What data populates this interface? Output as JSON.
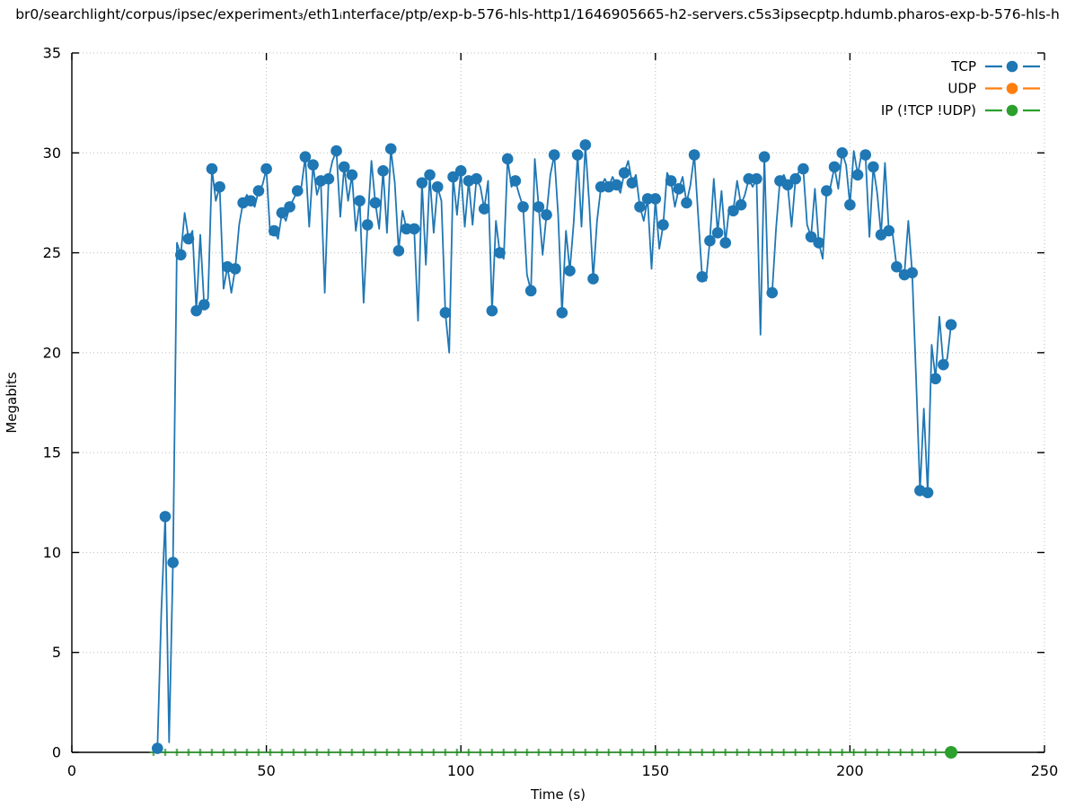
{
  "title": "br0/searchlight/corpus/ipsec/experiment₃/eth1ᵢnterface/ptp/exp-b-576-hls-http1/1646905665-h2-servers.c5s3ipsecptp.hdumb.pharos-exp-b-576-hls-h",
  "colors": {
    "tcp": "#1f77b4",
    "udp": "#ff7f0e",
    "ip": "#2ca02c",
    "axis": "#000000",
    "grid": "#bbbbbb"
  },
  "chart_data": {
    "type": "line",
    "style": "linespoints",
    "xlabel": "Time (s)",
    "ylabel": "Megabits",
    "xlim": [
      0,
      250
    ],
    "ylim": [
      0,
      35
    ],
    "xticks": [
      0,
      50,
      100,
      150,
      200,
      250
    ],
    "yticks": [
      0,
      5,
      10,
      15,
      20,
      25,
      30,
      35
    ],
    "grid": true,
    "legend_position": "top-right",
    "series": [
      {
        "name": "TCP",
        "color": "#1f77b4",
        "marker": "circle",
        "marker_every": 2,
        "points": [
          [
            22,
            0.2
          ],
          [
            23,
            7.0
          ],
          [
            24,
            11.8
          ],
          [
            25,
            0.5
          ],
          [
            26,
            9.5
          ],
          [
            27,
            25.5
          ],
          [
            28,
            24.9
          ],
          [
            29,
            27.0
          ],
          [
            30,
            25.7
          ],
          [
            31,
            26.1
          ],
          [
            32,
            22.1
          ],
          [
            33,
            25.9
          ],
          [
            34,
            22.4
          ],
          [
            35,
            22.7
          ],
          [
            36,
            29.2
          ],
          [
            37,
            27.6
          ],
          [
            38,
            28.3
          ],
          [
            39,
            23.2
          ],
          [
            40,
            24.3
          ],
          [
            41,
            23.0
          ],
          [
            42,
            24.2
          ],
          [
            43,
            26.4
          ],
          [
            44,
            27.5
          ],
          [
            45,
            27.9
          ],
          [
            46,
            27.6
          ],
          [
            47,
            27.3
          ],
          [
            48,
            28.1
          ],
          [
            49,
            28.4
          ],
          [
            50,
            29.2
          ],
          [
            51,
            25.9
          ],
          [
            52,
            26.1
          ],
          [
            53,
            25.7
          ],
          [
            54,
            27.0
          ],
          [
            55,
            26.6
          ],
          [
            56,
            27.3
          ],
          [
            57,
            27.7
          ],
          [
            58,
            28.1
          ],
          [
            59,
            28.3
          ],
          [
            60,
            29.8
          ],
          [
            61,
            26.3
          ],
          [
            62,
            29.4
          ],
          [
            63,
            27.9
          ],
          [
            64,
            28.6
          ],
          [
            65,
            23.0
          ],
          [
            66,
            28.7
          ],
          [
            67,
            29.6
          ],
          [
            68,
            30.1
          ],
          [
            69,
            26.8
          ],
          [
            70,
            29.3
          ],
          [
            71,
            27.6
          ],
          [
            72,
            28.9
          ],
          [
            73,
            26.1
          ],
          [
            74,
            27.6
          ],
          [
            75,
            22.5
          ],
          [
            76,
            26.4
          ],
          [
            77,
            29.6
          ],
          [
            78,
            27.5
          ],
          [
            79,
            26.2
          ],
          [
            80,
            29.1
          ],
          [
            81,
            26.0
          ],
          [
            82,
            30.2
          ],
          [
            83,
            28.5
          ],
          [
            84,
            25.1
          ],
          [
            85,
            27.1
          ],
          [
            86,
            26.2
          ],
          [
            87,
            26.3
          ],
          [
            88,
            26.2
          ],
          [
            89,
            21.6
          ],
          [
            90,
            28.5
          ],
          [
            91,
            24.4
          ],
          [
            92,
            28.9
          ],
          [
            93,
            26.0
          ],
          [
            94,
            28.3
          ],
          [
            95,
            27.6
          ],
          [
            96,
            22.0
          ],
          [
            97,
            20.0
          ],
          [
            98,
            28.8
          ],
          [
            99,
            26.9
          ],
          [
            100,
            29.1
          ],
          [
            101,
            26.3
          ],
          [
            102,
            28.6
          ],
          [
            103,
            26.4
          ],
          [
            104,
            28.7
          ],
          [
            105,
            28.3
          ],
          [
            106,
            27.2
          ],
          [
            107,
            28.6
          ],
          [
            108,
            22.1
          ],
          [
            109,
            26.6
          ],
          [
            110,
            25.0
          ],
          [
            111,
            24.7
          ],
          [
            112,
            29.7
          ],
          [
            113,
            28.3
          ],
          [
            114,
            28.6
          ],
          [
            115,
            27.9
          ],
          [
            116,
            27.3
          ],
          [
            117,
            23.9
          ],
          [
            118,
            23.1
          ],
          [
            119,
            29.7
          ],
          [
            120,
            27.3
          ],
          [
            121,
            24.9
          ],
          [
            122,
            26.9
          ],
          [
            123,
            28.9
          ],
          [
            124,
            29.9
          ],
          [
            125,
            26.9
          ],
          [
            126,
            22.0
          ],
          [
            127,
            26.1
          ],
          [
            128,
            24.1
          ],
          [
            129,
            26.5
          ],
          [
            130,
            29.9
          ],
          [
            131,
            26.3
          ],
          [
            132,
            30.4
          ],
          [
            133,
            27.4
          ],
          [
            134,
            23.7
          ],
          [
            135,
            26.6
          ],
          [
            136,
            28.3
          ],
          [
            137,
            28.7
          ],
          [
            138,
            28.3
          ],
          [
            139,
            28.8
          ],
          [
            140,
            28.4
          ],
          [
            141,
            28.0
          ],
          [
            142,
            29.0
          ],
          [
            143,
            29.6
          ],
          [
            144,
            28.5
          ],
          [
            145,
            28.9
          ],
          [
            146,
            27.3
          ],
          [
            147,
            26.6
          ],
          [
            148,
            27.7
          ],
          [
            149,
            24.2
          ],
          [
            150,
            27.7
          ],
          [
            151,
            25.2
          ],
          [
            152,
            26.4
          ],
          [
            153,
            29.0
          ],
          [
            154,
            28.6
          ],
          [
            155,
            27.3
          ],
          [
            156,
            28.2
          ],
          [
            157,
            28.8
          ],
          [
            158,
            27.5
          ],
          [
            159,
            28.4
          ],
          [
            160,
            29.9
          ],
          [
            161,
            26.8
          ],
          [
            162,
            23.8
          ],
          [
            163,
            23.6
          ],
          [
            164,
            25.6
          ],
          [
            165,
            28.7
          ],
          [
            166,
            26.0
          ],
          [
            167,
            28.1
          ],
          [
            168,
            25.5
          ],
          [
            169,
            27.3
          ],
          [
            170,
            27.1
          ],
          [
            171,
            28.6
          ],
          [
            172,
            27.4
          ],
          [
            173,
            27.9
          ],
          [
            174,
            28.7
          ],
          [
            175,
            28.3
          ],
          [
            176,
            28.7
          ],
          [
            177,
            20.9
          ],
          [
            178,
            29.8
          ],
          [
            179,
            23.1
          ],
          [
            180,
            23.0
          ],
          [
            181,
            26.2
          ],
          [
            182,
            28.6
          ],
          [
            183,
            28.9
          ],
          [
            184,
            28.4
          ],
          [
            185,
            26.3
          ],
          [
            186,
            28.7
          ],
          [
            187,
            29.1
          ],
          [
            188,
            29.2
          ],
          [
            189,
            26.4
          ],
          [
            190,
            25.8
          ],
          [
            191,
            28.2
          ],
          [
            192,
            25.5
          ],
          [
            193,
            24.7
          ],
          [
            194,
            28.1
          ],
          [
            195,
            28.3
          ],
          [
            196,
            29.3
          ],
          [
            197,
            28.2
          ],
          [
            198,
            30.0
          ],
          [
            199,
            29.4
          ],
          [
            200,
            27.4
          ],
          [
            201,
            30.1
          ],
          [
            202,
            28.9
          ],
          [
            203,
            30.0
          ],
          [
            204,
            29.9
          ],
          [
            205,
            25.8
          ],
          [
            206,
            29.3
          ],
          [
            207,
            28.0
          ],
          [
            208,
            25.9
          ],
          [
            209,
            29.5
          ],
          [
            210,
            26.1
          ],
          [
            211,
            25.9
          ],
          [
            212,
            24.3
          ],
          [
            213,
            24.0
          ],
          [
            214,
            23.9
          ],
          [
            215,
            26.6
          ],
          [
            216,
            24.0
          ],
          [
            217,
            18.8
          ],
          [
            218,
            13.1
          ],
          [
            219,
            17.2
          ],
          [
            220,
            13.0
          ],
          [
            221,
            20.4
          ],
          [
            222,
            18.7
          ],
          [
            223,
            21.8
          ],
          [
            224,
            19.4
          ],
          [
            225,
            19.7
          ],
          [
            226,
            21.4
          ],
          [
            227,
            21.2
          ]
        ]
      },
      {
        "name": "UDP",
        "color": "#ff7f0e",
        "marker": "circle",
        "points": []
      },
      {
        "name": "IP (!TCP  !UDP)",
        "color": "#2ca02c",
        "marker": "circle",
        "points": [
          [
            20,
            0
          ],
          [
            226,
            0
          ]
        ],
        "baseline_value": 0,
        "axis_dash_marks": {
          "from": 21,
          "to": 225,
          "step": 3
        },
        "end_marker_point": [
          226,
          0
        ]
      }
    ]
  }
}
